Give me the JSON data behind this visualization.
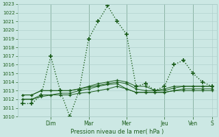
{
  "title": "",
  "xlabel": "Pression niveau de la mer( hPa )",
  "background_color": "#cce8e4",
  "grid_color": "#aaccc8",
  "line_color": "#1a5c1a",
  "ylim": [
    1010,
    1023
  ],
  "ytick_min": 1010,
  "ytick_max": 1023,
  "day_labels": [
    "Dim",
    "Mar",
    "Mer",
    "Jeu",
    "Ven",
    "S"
  ],
  "line1_x": [
    0,
    1,
    2,
    3,
    4,
    5,
    6,
    7,
    8,
    9,
    10,
    11,
    12,
    13,
    14,
    15,
    16,
    17,
    18,
    19,
    20
  ],
  "line1_y": [
    1011.5,
    1011.5,
    1012.5,
    1017.0,
    1013.0,
    1010.0,
    1013.0,
    1019.0,
    1021.0,
    1022.8,
    1021.0,
    1019.5,
    1013.5,
    1013.8,
    1013.0,
    1013.5,
    1016.0,
    1016.5,
    1015.0,
    1014.0,
    1013.5
  ],
  "line2_x": [
    0,
    1,
    2,
    3,
    4,
    5,
    6,
    7,
    8,
    9,
    10,
    11,
    12,
    13,
    14,
    15,
    16,
    17,
    18,
    19,
    20
  ],
  "line2_y": [
    1012.5,
    1012.5,
    1013.0,
    1013.0,
    1013.0,
    1013.0,
    1013.2,
    1013.5,
    1013.8,
    1014.0,
    1014.2,
    1014.0,
    1013.5,
    1013.5,
    1013.0,
    1013.2,
    1013.5,
    1013.5,
    1013.5,
    1013.5,
    1013.5
  ],
  "line3_x": [
    0,
    1,
    2,
    3,
    4,
    5,
    6,
    7,
    8,
    9,
    10,
    11,
    12,
    13,
    14,
    15,
    16,
    17,
    18,
    19,
    20
  ],
  "line3_y": [
    1012.5,
    1012.5,
    1013.0,
    1013.0,
    1013.0,
    1013.0,
    1013.2,
    1013.4,
    1013.6,
    1013.8,
    1014.0,
    1013.8,
    1013.2,
    1013.0,
    1013.0,
    1013.0,
    1013.3,
    1013.5,
    1013.5,
    1013.5,
    1013.5
  ],
  "line4_x": [
    0,
    1,
    2,
    3,
    4,
    5,
    6,
    7,
    8,
    9,
    10,
    11,
    12,
    13,
    14,
    15,
    16,
    17,
    18,
    19,
    20
  ],
  "line4_y": [
    1012.0,
    1012.0,
    1012.5,
    1012.5,
    1012.7,
    1012.7,
    1013.0,
    1013.2,
    1013.5,
    1013.7,
    1013.8,
    1013.2,
    1012.8,
    1012.8,
    1012.8,
    1012.8,
    1013.0,
    1013.2,
    1013.2,
    1013.2,
    1013.2
  ],
  "line5_x": [
    0,
    1,
    2,
    3,
    4,
    5,
    6,
    7,
    8,
    9,
    10,
    11,
    12,
    13,
    14,
    15,
    16,
    17,
    18,
    19,
    20
  ],
  "line5_y": [
    1012.0,
    1012.0,
    1012.3,
    1012.5,
    1012.5,
    1012.5,
    1012.7,
    1012.8,
    1013.0,
    1013.2,
    1013.5,
    1013.2,
    1012.8,
    1012.8,
    1012.8,
    1012.8,
    1013.0,
    1013.0,
    1013.0,
    1013.0,
    1013.0
  ],
  "day_tick_x": [
    3,
    7,
    11,
    15,
    18,
    20
  ],
  "figsize": [
    3.2,
    2.0
  ],
  "dpi": 100
}
